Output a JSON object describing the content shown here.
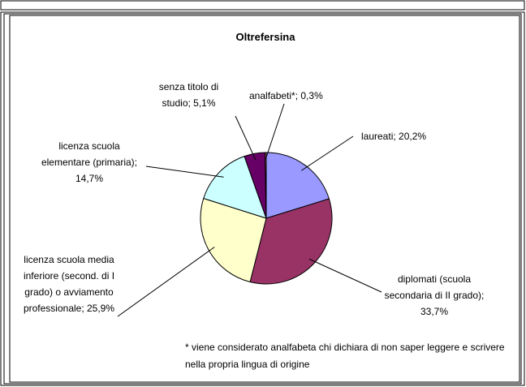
{
  "chart_data": {
    "type": "pie",
    "title": "Oltrefersina",
    "categories": [
      "laureati",
      "diplomati (scuola secondaria di II grado)",
      "licenza scuola media inferiore (second. di I grado) o avviamento professionale",
      "licenza scuola elementare (primaria)",
      "senza titolo di studio",
      "analfabeti*"
    ],
    "values": [
      20.2,
      33.7,
      25.9,
      14.7,
      5.1,
      0.3
    ],
    "value_labels": [
      "laureati; 20,2%",
      "diplomati (scuola secondaria di II grado); 33,7%",
      "licenza scuola media inferiore (second. di I grado) o avviamento professionale; 25,9%",
      "licenza scuola elementare (primaria); 14,7%",
      "senza titolo di studio; 5,1%",
      "analfabeti*; 0,3%"
    ],
    "colors": [
      "#9999ff",
      "#993366",
      "#ffffcc",
      "#ccffff",
      "#660066",
      "#ff8080"
    ],
    "note": "* viene considerato analfabeta chi dichiara di non saper leggere e scrivere nella propria lingua di origine"
  }
}
